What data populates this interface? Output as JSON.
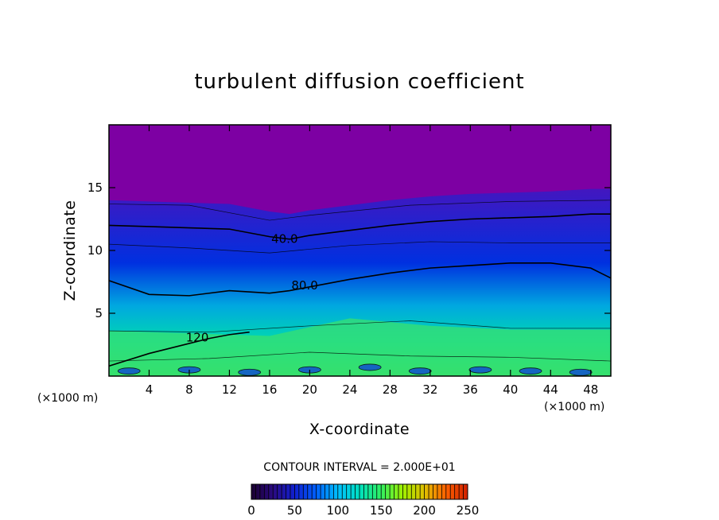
{
  "chart_data": {
    "type": "heatmap",
    "title": "turbulent diffusion coefficient",
    "xlabel": "X-coordinate",
    "ylabel": "Z-coordinate",
    "x_unit": "(×1000 m)",
    "z_unit": "(×1000 m)",
    "x_ticks": [
      4,
      8,
      12,
      16,
      20,
      24,
      28,
      32,
      36,
      40,
      44,
      48
    ],
    "y_ticks": [
      5,
      10,
      15
    ],
    "xlim": [
      0,
      50
    ],
    "ylim": [
      0,
      20
    ],
    "contour_interval_label": "CONTOUR INTERVAL = 2.000E+01",
    "contour_labels": [
      "40.0",
      "80.0",
      "120"
    ],
    "colorbar": {
      "ticks": [
        "0",
        "50",
        "100",
        "150",
        "200",
        "250"
      ],
      "range": [
        0,
        250
      ],
      "colors": [
        "#1a0030",
        "#2a0a80",
        "#1020d0",
        "#0060ff",
        "#00c0ff",
        "#00e0c0",
        "#30f060",
        "#a0f000",
        "#e0c000",
        "#ff6000",
        "#d02000"
      ]
    },
    "field_colors": {
      "top_layer": "#7d00a3",
      "upper": "#0030e0",
      "mid": "#00a8e0",
      "lower": "#00d8b0",
      "surface": "#30e060"
    },
    "series": [
      {
        "name": "40.0",
        "x": [
          0,
          4,
          8,
          12,
          16,
          18,
          20,
          24,
          28,
          32,
          36,
          40,
          44,
          48,
          50
        ],
        "values": [
          12.0,
          11.9,
          11.8,
          11.7,
          11.1,
          10.9,
          11.2,
          11.6,
          12.0,
          12.3,
          12.5,
          12.6,
          12.7,
          12.9,
          12.9
        ]
      },
      {
        "name": "80.0",
        "x": [
          0,
          4,
          8,
          12,
          16,
          18,
          20,
          24,
          28,
          32,
          36,
          40,
          44,
          48,
          50
        ],
        "values": [
          7.6,
          6.5,
          6.4,
          6.8,
          6.6,
          6.8,
          7.1,
          7.7,
          8.2,
          8.6,
          8.8,
          9.0,
          9.0,
          8.6,
          7.8
        ]
      },
      {
        "name": "120",
        "x": [
          0,
          4,
          8,
          10,
          12,
          14
        ],
        "values": [
          0.8,
          1.8,
          2.6,
          3.0,
          3.3,
          3.5
        ]
      }
    ]
  }
}
